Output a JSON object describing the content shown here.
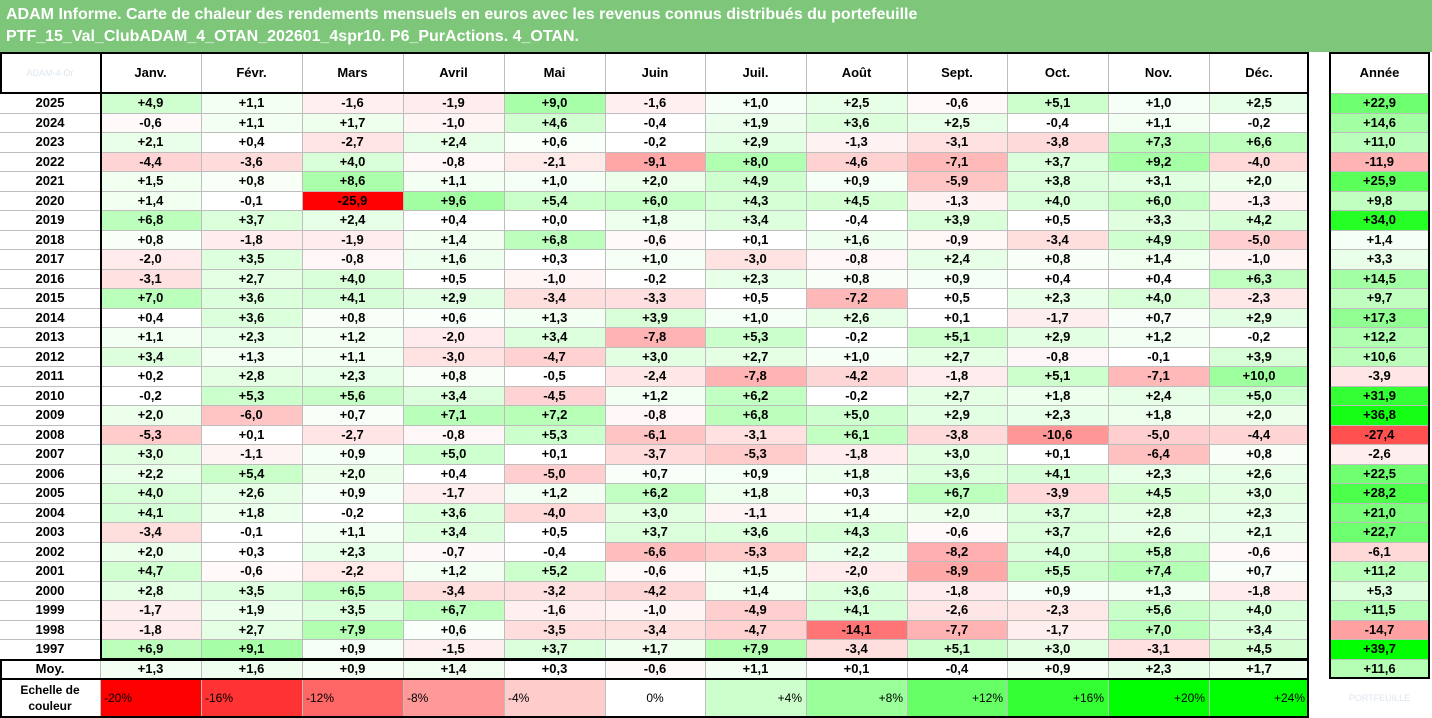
{
  "title_line1": "ADAM Informe. Carte de chaleur des rendements mensuels en euros avec les revenus connus distribués du portefeuille",
  "title_line2": "PTF_15_Val_ClubADAM_4_OTAN_202601_4spr10. P6_PurActions. 4_OTAN.",
  "colors": {
    "header_bg": "#7dc67a",
    "title_text": "#ffffff",
    "max_negative": "#ff0000",
    "max_positive": "#00ff00"
  },
  "corner_watermark": "ADAM-4-Or",
  "logo_watermark": "PORTFEUILLE",
  "chart_data": {
    "type": "heatmap",
    "columns": [
      "Janv.",
      "Févr.",
      "Mars",
      "Avril",
      "Mai",
      "Juin",
      "Juil.",
      "Août",
      "Sept.",
      "Oct.",
      "Nov.",
      "Déc."
    ],
    "total_column": "Année",
    "rows": [
      {
        "year": "2025",
        "values": [
          "+4,9",
          "+1,1",
          "-1,6",
          "-1,9",
          "+9,0",
          "-1,6",
          "+1,0",
          "+2,5",
          "-0,6",
          "+5,1",
          "+1,0",
          "+2,5"
        ],
        "total": "+22,9"
      },
      {
        "year": "2024",
        "values": [
          "-0,6",
          "+1,1",
          "+1,7",
          "-1,0",
          "+4,6",
          "-0,4",
          "+1,9",
          "+3,6",
          "+2,5",
          "-0,4",
          "+1,1",
          "-0,2"
        ],
        "total": "+14,6"
      },
      {
        "year": "2023",
        "values": [
          "+2,1",
          "+0,4",
          "-2,7",
          "+2,4",
          "+0,6",
          "-0,2",
          "+2,9",
          "-1,3",
          "-3,1",
          "-3,8",
          "+7,3",
          "+6,6"
        ],
        "total": "+11,0"
      },
      {
        "year": "2022",
        "values": [
          "-4,4",
          "-3,6",
          "+4,0",
          "-0,8",
          "-2,1",
          "-9,1",
          "+8,0",
          "-4,6",
          "-7,1",
          "+3,7",
          "+9,2",
          "-4,0"
        ],
        "total": "-11,9"
      },
      {
        "year": "2021",
        "values": [
          "+1,5",
          "+0,8",
          "+8,6",
          "+1,1",
          "+1,0",
          "+2,0",
          "+4,9",
          "+0,9",
          "-5,9",
          "+3,8",
          "+3,1",
          "+2,0"
        ],
        "total": "+25,9"
      },
      {
        "year": "2020",
        "values": [
          "+1,4",
          "-0,1",
          "-25,9",
          "+9,6",
          "+5,4",
          "+6,0",
          "+4,3",
          "+4,5",
          "-1,3",
          "+4,0",
          "+6,0",
          "-1,3"
        ],
        "total": "+9,8"
      },
      {
        "year": "2019",
        "values": [
          "+6,8",
          "+3,7",
          "+2,4",
          "+0,4",
          "+0,0",
          "+1,8",
          "+3,4",
          "-0,4",
          "+3,9",
          "+0,5",
          "+3,3",
          "+4,2"
        ],
        "total": "+34,0"
      },
      {
        "year": "2018",
        "values": [
          "+0,8",
          "-1,8",
          "-1,9",
          "+1,4",
          "+6,8",
          "-0,6",
          "+0,1",
          "+1,6",
          "-0,9",
          "-3,4",
          "+4,9",
          "-5,0"
        ],
        "total": "+1,4"
      },
      {
        "year": "2017",
        "values": [
          "-2,0",
          "+3,5",
          "-0,8",
          "+1,6",
          "+0,3",
          "+1,0",
          "-3,0",
          "-0,8",
          "+2,4",
          "+0,8",
          "+1,4",
          "-1,0"
        ],
        "total": "+3,3"
      },
      {
        "year": "2016",
        "values": [
          "-3,1",
          "+2,7",
          "+4,0",
          "+0,5",
          "-1,0",
          "-0,2",
          "+2,3",
          "+0,8",
          "+0,9",
          "+0,4",
          "+0,4",
          "+6,3"
        ],
        "total": "+14,5"
      },
      {
        "year": "2015",
        "values": [
          "+7,0",
          "+3,6",
          "+4,1",
          "+2,9",
          "-3,4",
          "-3,3",
          "+0,5",
          "-7,2",
          "+0,5",
          "+2,3",
          "+4,0",
          "-2,3"
        ],
        "total": "+9,7"
      },
      {
        "year": "2014",
        "values": [
          "+0,4",
          "+3,6",
          "+0,8",
          "+0,6",
          "+1,3",
          "+3,9",
          "+1,0",
          "+2,6",
          "+0,1",
          "-1,7",
          "+0,7",
          "+2,9"
        ],
        "total": "+17,3"
      },
      {
        "year": "2013",
        "values": [
          "+1,1",
          "+2,3",
          "+1,2",
          "-2,0",
          "+3,4",
          "-7,8",
          "+5,3",
          "-0,2",
          "+5,1",
          "+2,9",
          "+1,2",
          "-0,2"
        ],
        "total": "+12,2"
      },
      {
        "year": "2012",
        "values": [
          "+3,4",
          "+1,3",
          "+1,1",
          "-3,0",
          "-4,7",
          "+3,0",
          "+2,7",
          "+1,0",
          "+2,7",
          "-0,8",
          "-0,1",
          "+3,9"
        ],
        "total": "+10,6"
      },
      {
        "year": "2011",
        "values": [
          "+0,2",
          "+2,8",
          "+2,3",
          "+0,8",
          "-0,5",
          "-2,4",
          "-7,8",
          "-4,2",
          "-1,8",
          "+5,1",
          "-7,1",
          "+10,0"
        ],
        "total": "-3,9"
      },
      {
        "year": "2010",
        "values": [
          "-0,2",
          "+5,3",
          "+5,6",
          "+3,4",
          "-4,5",
          "+1,2",
          "+6,2",
          "-0,2",
          "+2,7",
          "+1,8",
          "+2,4",
          "+5,0"
        ],
        "total": "+31,9"
      },
      {
        "year": "2009",
        "values": [
          "+2,0",
          "-6,0",
          "+0,7",
          "+7,1",
          "+7,2",
          "-0,8",
          "+6,8",
          "+5,0",
          "+2,9",
          "+2,3",
          "+1,8",
          "+2,0"
        ],
        "total": "+36,8"
      },
      {
        "year": "2008",
        "values": [
          "-5,3",
          "+0,1",
          "-2,7",
          "-0,8",
          "+5,3",
          "-6,1",
          "-3,1",
          "+6,1",
          "-3,8",
          "-10,6",
          "-5,0",
          "-4,4"
        ],
        "total": "-27,4"
      },
      {
        "year": "2007",
        "values": [
          "+3,0",
          "-1,1",
          "+0,9",
          "+5,0",
          "+0,1",
          "-3,7",
          "-5,3",
          "-1,8",
          "+3,0",
          "+0,1",
          "-6,4",
          "+0,8"
        ],
        "total": "-2,6"
      },
      {
        "year": "2006",
        "values": [
          "+2,2",
          "+5,4",
          "+2,0",
          "+0,4",
          "-5,0",
          "+0,7",
          "+0,9",
          "+1,8",
          "+3,6",
          "+4,1",
          "+2,3",
          "+2,6"
        ],
        "total": "+22,5"
      },
      {
        "year": "2005",
        "values": [
          "+4,0",
          "+2,6",
          "+0,9",
          "-1,7",
          "+1,2",
          "+6,2",
          "+1,8",
          "+0,3",
          "+6,7",
          "-3,9",
          "+4,5",
          "+3,0"
        ],
        "total": "+28,2"
      },
      {
        "year": "2004",
        "values": [
          "+4,1",
          "+1,8",
          "-0,2",
          "+3,6",
          "-4,0",
          "+3,0",
          "-1,1",
          "+1,4",
          "+2,0",
          "+3,7",
          "+2,8",
          "+2,3"
        ],
        "total": "+21,0"
      },
      {
        "year": "2003",
        "values": [
          "-3,4",
          "-0,1",
          "+1,1",
          "+3,4",
          "+0,5",
          "+3,7",
          "+3,6",
          "+4,3",
          "-0,6",
          "+3,7",
          "+2,6",
          "+2,1"
        ],
        "total": "+22,7"
      },
      {
        "year": "2002",
        "values": [
          "+2,0",
          "+0,3",
          "+2,3",
          "-0,7",
          "-0,4",
          "-6,6",
          "-5,3",
          "+2,2",
          "-8,2",
          "+4,0",
          "+5,8",
          "-0,6"
        ],
        "total": "-6,1"
      },
      {
        "year": "2001",
        "values": [
          "+4,7",
          "-0,6",
          "-2,2",
          "+1,2",
          "+5,2",
          "-0,6",
          "+1,5",
          "-2,0",
          "-8,9",
          "+5,5",
          "+7,4",
          "+0,7"
        ],
        "total": "+11,2"
      },
      {
        "year": "2000",
        "values": [
          "+2,8",
          "+3,5",
          "+6,5",
          "-3,4",
          "-3,2",
          "-4,2",
          "+1,4",
          "+3,6",
          "-1,8",
          "+0,9",
          "+1,3",
          "-1,8"
        ],
        "total": "+5,3"
      },
      {
        "year": "1999",
        "values": [
          "-1,7",
          "+1,9",
          "+3,5",
          "+6,7",
          "-1,6",
          "-1,0",
          "-4,9",
          "+4,1",
          "-2,6",
          "-2,3",
          "+5,6",
          "+4,0"
        ],
        "total": "+11,5"
      },
      {
        "year": "1998",
        "values": [
          "-1,8",
          "+2,7",
          "+7,9",
          "+0,6",
          "-3,5",
          "-3,4",
          "-4,7",
          "-14,1",
          "-7,7",
          "-1,7",
          "+7,0",
          "+3,4"
        ],
        "total": "-14,7"
      },
      {
        "year": "1997",
        "values": [
          "+6,9",
          "+9,1",
          "+0,9",
          "-1,5",
          "+3,7",
          "+1,7",
          "+7,9",
          "-3,4",
          "+5,1",
          "+3,0",
          "-3,1",
          "+4,5"
        ],
        "total": "+39,7"
      }
    ],
    "average_row": {
      "label": "Moy.",
      "values": [
        "+1,3",
        "+1,6",
        "+0,9",
        "+1,4",
        "+0,3",
        "-0,6",
        "+1,1",
        "+0,1",
        "-0,4",
        "+0,9",
        "+2,3",
        "+1,7"
      ],
      "total": "+11,6"
    },
    "color_scale": {
      "label_line1": "Echelle de",
      "label_line2": "couleur",
      "stops": [
        "-20%",
        "-16%",
        "-12%",
        "-8%",
        "-4%",
        "0%",
        "+4%",
        "+8%",
        "+12%",
        "+16%",
        "+20%",
        "+24%"
      ],
      "stop_values": [
        -20,
        -16,
        -12,
        -8,
        -4,
        0,
        4,
        8,
        12,
        16,
        20,
        24
      ]
    }
  }
}
